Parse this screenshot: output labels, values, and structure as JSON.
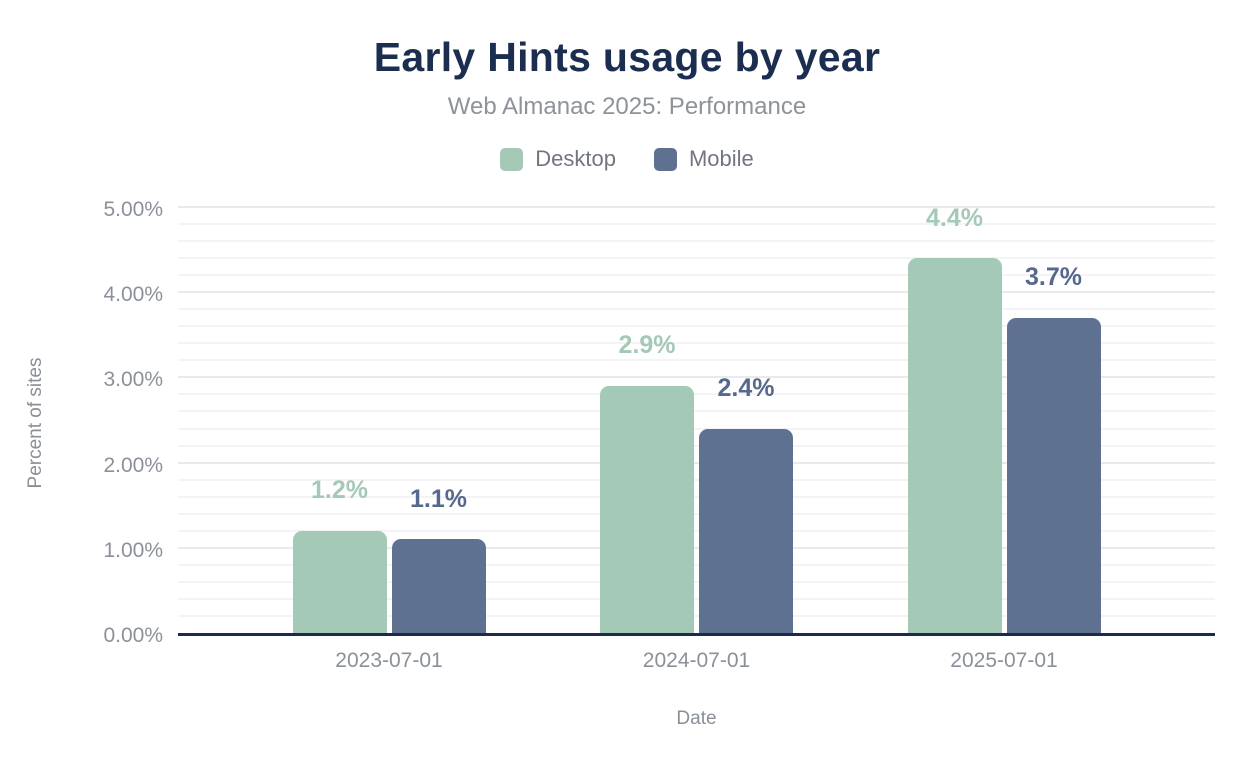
{
  "chart_data": {
    "type": "bar",
    "title": "Early Hints usage by year",
    "subtitle": "Web Almanac 2025: Performance",
    "xlabel": "Date",
    "ylabel": "Percent of sites",
    "categories": [
      "2023-07-01",
      "2024-07-01",
      "2025-07-01"
    ],
    "series": [
      {
        "name": "Desktop",
        "color": "#a4c9b6",
        "label_color": "#a4c9b6",
        "values": [
          1.2,
          2.9,
          4.4
        ],
        "labels": [
          "1.2%",
          "2.9%",
          "4.4%"
        ]
      },
      {
        "name": "Mobile",
        "color": "#5e7191",
        "label_color": "#56698c",
        "values": [
          1.1,
          2.4,
          3.7
        ],
        "labels": [
          "1.1%",
          "2.4%",
          "3.7%"
        ]
      }
    ],
    "ylim": [
      0,
      5
    ],
    "yticks": [
      "0.00%",
      "1.00%",
      "2.00%",
      "3.00%",
      "4.00%",
      "5.00%"
    ],
    "grid": {
      "minor_step": 0.2,
      "major_step": 1.0,
      "visible": true
    },
    "legend_position": "top",
    "axis_line_color": "#1b2b4a"
  }
}
